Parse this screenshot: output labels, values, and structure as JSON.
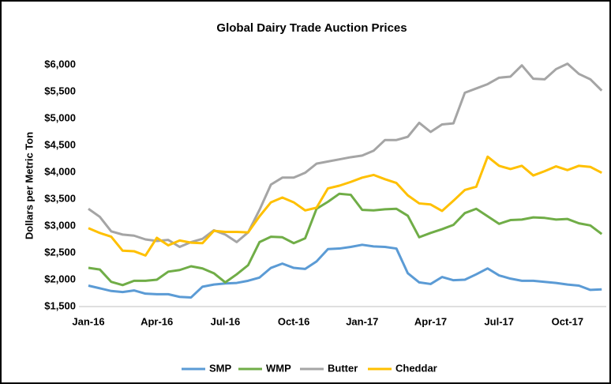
{
  "chart_data": {
    "type": "line",
    "title": "Global Dairy Trade Auction Prices",
    "y_label": "Dollars per Metric Ton",
    "categories": [
      "Jan-16",
      null,
      null,
      null,
      null,
      null,
      "Apr-16",
      null,
      null,
      null,
      null,
      null,
      "Jul-16",
      null,
      null,
      null,
      null,
      null,
      "Oct-16",
      null,
      null,
      null,
      null,
      null,
      "Jan-17",
      null,
      null,
      null,
      null,
      null,
      "Apr-17",
      null,
      null,
      null,
      null,
      null,
      "Jul-17",
      null,
      null,
      null,
      null,
      null,
      "Oct-17",
      null,
      null,
      null
    ],
    "series": [
      {
        "name": "SMP",
        "color": "#5b9bd5",
        "values": [
          1890,
          1840,
          1790,
          1770,
          1800,
          1740,
          1730,
          1730,
          1680,
          1670,
          1870,
          1910,
          1930,
          1940,
          1980,
          2040,
          2220,
          2300,
          2220,
          2200,
          2340,
          2570,
          2580,
          2610,
          2650,
          2620,
          2610,
          2580,
          2120,
          1950,
          1920,
          2050,
          1990,
          2000,
          2100,
          2210,
          2080,
          2020,
          1980,
          1980,
          1960,
          1940,
          1910,
          1890,
          1810,
          1820
        ]
      },
      {
        "name": "WMP",
        "color": "#70ad47",
        "values": [
          2220,
          2190,
          1960,
          1900,
          1980,
          1980,
          2000,
          2150,
          2180,
          2250,
          2210,
          2120,
          1950,
          2100,
          2270,
          2700,
          2800,
          2790,
          2680,
          2770,
          3320,
          3450,
          3600,
          3580,
          3300,
          3290,
          3310,
          3320,
          3190,
          2790,
          2870,
          2940,
          3020,
          3240,
          3320,
          3180,
          3040,
          3110,
          3120,
          3160,
          3150,
          3120,
          3130,
          3050,
          3010,
          2850
        ]
      },
      {
        "name": "Butter",
        "color": "#a5a5a5",
        "values": [
          3320,
          3170,
          2900,
          2840,
          2820,
          2750,
          2720,
          2740,
          2610,
          2700,
          2760,
          2920,
          2840,
          2700,
          2880,
          3300,
          3770,
          3900,
          3900,
          3990,
          4160,
          4200,
          4240,
          4280,
          4310,
          4400,
          4600,
          4600,
          4660,
          4920,
          4750,
          4890,
          4910,
          5480,
          5560,
          5640,
          5760,
          5780,
          5990,
          5740,
          5730,
          5920,
          6020,
          5830,
          5730,
          5520
        ]
      },
      {
        "name": "Cheddar",
        "color": "#ffc000",
        "values": [
          2960,
          2870,
          2800,
          2540,
          2530,
          2450,
          2780,
          2640,
          2730,
          2690,
          2680,
          2910,
          2890,
          2890,
          2880,
          3180,
          3440,
          3530,
          3440,
          3290,
          3340,
          3700,
          3750,
          3820,
          3900,
          3950,
          3870,
          3800,
          3570,
          3420,
          3400,
          3280,
          3470,
          3670,
          3730,
          4290,
          4120,
          4060,
          4120,
          3940,
          4020,
          4110,
          4040,
          4120,
          4100,
          3990
        ]
      }
    ],
    "ylim": [
      1500,
      6000
    ],
    "yticks": [
      {
        "value": 1500,
        "label": "$1,500"
      },
      {
        "value": 2000,
        "label": "$2,000"
      },
      {
        "value": 2500,
        "label": "$2,500"
      },
      {
        "value": 3000,
        "label": "$3,000"
      },
      {
        "value": 3500,
        "label": "$3,500"
      },
      {
        "value": 4000,
        "label": "$4,000"
      },
      {
        "value": 4500,
        "label": "$4,500"
      },
      {
        "value": 5000,
        "label": "$5,000"
      },
      {
        "value": 5500,
        "label": "$5,500"
      },
      {
        "value": 6000,
        "label": "$6,000"
      }
    ],
    "legend": "bottom"
  }
}
